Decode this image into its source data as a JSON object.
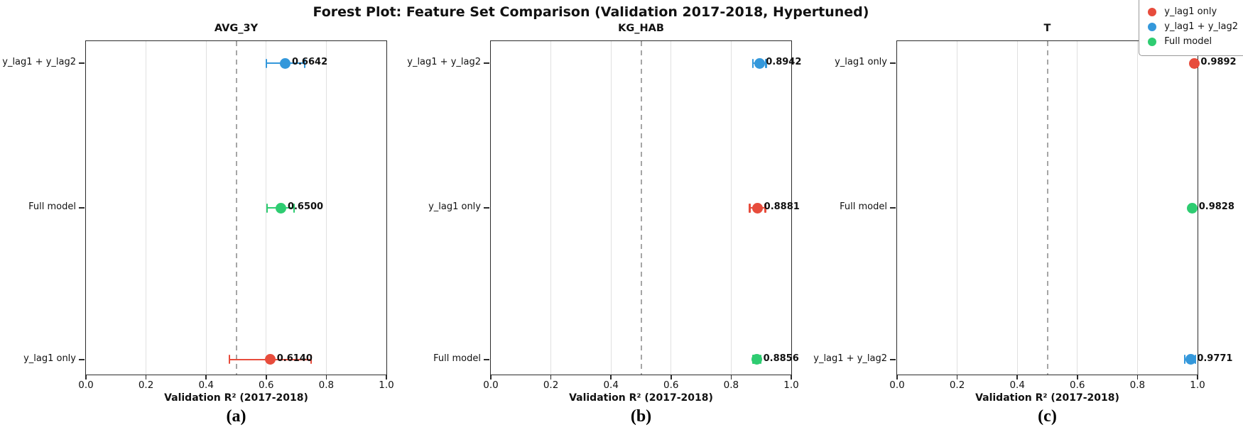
{
  "figure_title": "Forest Plot: Feature Set Comparison (Validation 2017-2018, Hypertuned)",
  "colors": {
    "y_lag1_only": "#e74c3c",
    "y_lag1_plus_y_lag2": "#3498db",
    "full_model": "#2ecc71",
    "reference_line": "#a6a6a6",
    "gridline": "#e0e0e0",
    "spine": "#2b2b2b"
  },
  "legend": {
    "items": [
      {
        "label": "y_lag1 only",
        "color": "#e74c3c"
      },
      {
        "label": "y_lag1 + y_lag2",
        "color": "#3498db"
      },
      {
        "label": "Full model",
        "color": "#2ecc71"
      }
    ]
  },
  "chart_data": [
    {
      "type": "scatter",
      "variant": "forest-plot",
      "title": "AVG_3Y",
      "caption": "(a)",
      "xlabel": "Validation R² (2017-2018)",
      "xlim": [
        0.0,
        1.0
      ],
      "xticks": [
        {
          "value": 0.0,
          "label": "0.0"
        },
        {
          "value": 0.2,
          "label": "0.2"
        },
        {
          "value": 0.4,
          "label": "0.4"
        },
        {
          "value": 0.6,
          "label": "0.6"
        },
        {
          "value": 0.8,
          "label": "0.8"
        },
        {
          "value": 1.0,
          "label": "1.0"
        }
      ],
      "grid_x": [
        0.2,
        0.4,
        0.6,
        0.8
      ],
      "refline_x": 0.5,
      "rows": [
        {
          "label": "y_lag1 + y_lag2",
          "series": "y_lag1 + y_lag2",
          "value": 0.6642,
          "value_label": "0.6642",
          "ci_low": 0.6,
          "ci_high": 0.728,
          "color": "#3498db"
        },
        {
          "label": "Full model",
          "series": "Full model",
          "value": 0.65,
          "value_label": "0.6500",
          "ci_low": 0.603,
          "ci_high": 0.693,
          "color": "#2ecc71"
        },
        {
          "label": "y_lag1 only",
          "series": "y_lag1 only",
          "value": 0.614,
          "value_label": "0.6140",
          "ci_low": 0.478,
          "ci_high": 0.749,
          "color": "#e74c3c"
        }
      ]
    },
    {
      "type": "scatter",
      "variant": "forest-plot",
      "title": "KG_HAB",
      "caption": "(b)",
      "xlabel": "Validation R² (2017-2018)",
      "xlim": [
        0.0,
        1.0
      ],
      "xticks": [
        {
          "value": 0.0,
          "label": "0.0"
        },
        {
          "value": 0.2,
          "label": "0.2"
        },
        {
          "value": 0.4,
          "label": "0.4"
        },
        {
          "value": 0.6,
          "label": "0.6"
        },
        {
          "value": 0.8,
          "label": "0.8"
        },
        {
          "value": 1.0,
          "label": "1.0"
        }
      ],
      "grid_x": [
        0.2,
        0.4,
        0.6,
        0.8
      ],
      "refline_x": 0.5,
      "rows": [
        {
          "label": "y_lag1 + y_lag2",
          "series": "y_lag1 + y_lag2",
          "value": 0.8942,
          "value_label": "0.8942",
          "ci_low": 0.872,
          "ci_high": 0.916,
          "color": "#3498db"
        },
        {
          "label": "y_lag1 only",
          "series": "y_lag1 only",
          "value": 0.8881,
          "value_label": "0.8881",
          "ci_low": 0.862,
          "ci_high": 0.914,
          "color": "#e74c3c"
        },
        {
          "label": "Full model",
          "series": "Full model",
          "value": 0.8856,
          "value_label": "0.8856",
          "ci_low": 0.873,
          "ci_high": 0.898,
          "color": "#2ecc71"
        }
      ]
    },
    {
      "type": "scatter",
      "variant": "forest-plot",
      "title": "T",
      "caption": "(c)",
      "xlabel": "Validation R² (2017-2018)",
      "xlim": [
        0.0,
        1.0
      ],
      "xticks": [
        {
          "value": 0.0,
          "label": "0.0"
        },
        {
          "value": 0.2,
          "label": "0.2"
        },
        {
          "value": 0.4,
          "label": "0.4"
        },
        {
          "value": 0.6,
          "label": "0.6"
        },
        {
          "value": 0.8,
          "label": "0.8"
        },
        {
          "value": 1.0,
          "label": "1.0"
        }
      ],
      "grid_x": [
        0.2,
        0.4,
        0.6,
        0.8
      ],
      "refline_x": 0.5,
      "rows": [
        {
          "label": "y_lag1 only",
          "series": "y_lag1 only",
          "value": 0.9892,
          "value_label": "0.9892",
          "ci_low": 0.982,
          "ci_high": 0.996,
          "color": "#e74c3c"
        },
        {
          "label": "Full model",
          "series": "Full model",
          "value": 0.9828,
          "value_label": "0.9828",
          "ci_low": 0.974,
          "ci_high": 0.991,
          "color": "#2ecc71"
        },
        {
          "label": "y_lag1 + y_lag2",
          "series": "y_lag1 + y_lag2",
          "value": 0.9771,
          "value_label": "0.9771",
          "ci_low": 0.957,
          "ci_high": 0.993,
          "color": "#3498db"
        }
      ]
    }
  ]
}
